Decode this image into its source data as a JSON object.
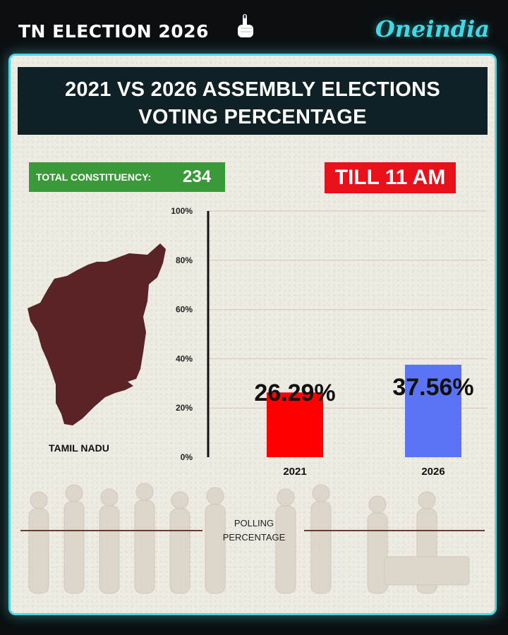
{
  "topbar": {
    "title": "TN ELECTION 2026",
    "brand": "Oneindia",
    "icons": {
      "vote": "voting-finger-icon"
    }
  },
  "header": {
    "line1": "2021 VS 2026 ASSEMBLY ELECTIONS",
    "line2": "VOTING PERCENTAGE"
  },
  "constituency": {
    "label": "TOTAL CONSTITUENCY:",
    "value": "234"
  },
  "time_badge": "TILL 11 AM",
  "state": {
    "name": "TAMIL NADU"
  },
  "footer": {
    "line1": "POLLING",
    "line2": "PERCENTAGE"
  },
  "colors": {
    "accent": "#4fd6e0",
    "header_bg": "#0f2124",
    "green_badge": "#3a9a3a",
    "red_badge": "#e8101b",
    "map_fill": "#5a2426"
  },
  "chart_data": {
    "type": "bar",
    "categories": [
      "2021",
      "2026"
    ],
    "values": [
      26.29,
      37.56
    ],
    "value_labels": [
      "26.29%",
      "37.56%"
    ],
    "colors": [
      "#ff0000",
      "#5b74f6"
    ],
    "yticks": [
      "0%",
      "20%",
      "40%",
      "60%",
      "80%",
      "100%"
    ],
    "ylim": [
      0,
      100
    ],
    "grid": true,
    "legend": "none"
  }
}
